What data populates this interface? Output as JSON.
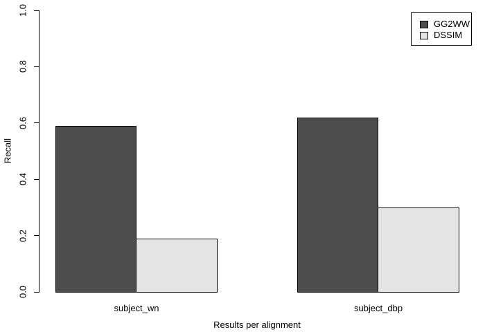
{
  "chart_data": {
    "type": "bar",
    "title": "",
    "xlabel": "Results per alignment",
    "ylabel": "Recall",
    "categories": [
      "subject_wn",
      "subject_dbp"
    ],
    "series": [
      {
        "name": "GG2WW",
        "color": "#4d4d4d",
        "values": [
          0.59,
          0.62
        ]
      },
      {
        "name": "DSSIM",
        "color": "#e5e5e5",
        "values": [
          0.19,
          0.3
        ]
      }
    ],
    "ylim": [
      0.0,
      1.0
    ],
    "yticks": [
      "0.0",
      "0.2",
      "0.4",
      "0.6",
      "0.8",
      "1.0"
    ],
    "grid": false,
    "legend_position": "top-right",
    "bar_border_color": "#000000",
    "background_color": "#ffffff"
  }
}
